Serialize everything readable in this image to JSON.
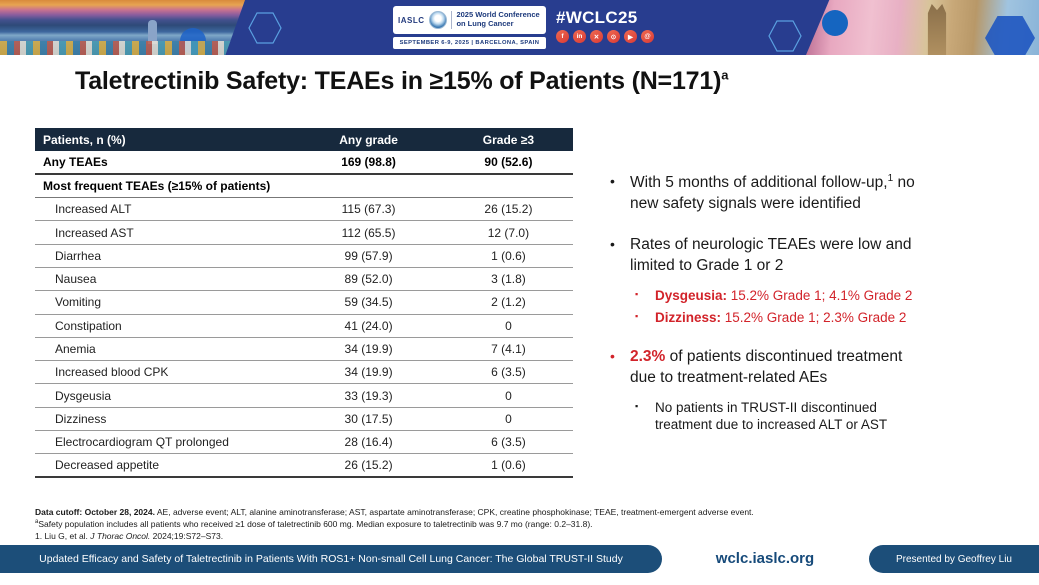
{
  "colors": {
    "accent_red": "#d2232a",
    "header_blue": "#283d8f",
    "table_header_bg": "#17293d",
    "footer_navy": "#1c4e79"
  },
  "header": {
    "iaslc_label": "IASLC",
    "conference_name": "2025 World Conference on Lung Cancer",
    "date_location": "SEPTEMBER 6-9, 2025  |  BARCELONA, SPAIN",
    "hashtag": "#WCLC25",
    "socials": [
      {
        "name": "facebook-icon",
        "glyph": "f"
      },
      {
        "name": "linkedin-icon",
        "glyph": "in"
      },
      {
        "name": "x-icon",
        "glyph": "✕"
      },
      {
        "name": "instagram-icon",
        "glyph": "⊙"
      },
      {
        "name": "youtube-icon",
        "glyph": "▶"
      },
      {
        "name": "threads-icon",
        "glyph": "@"
      }
    ]
  },
  "title": {
    "text": "Taletrectinib Safety: TEAEs in ≥15% of Patients (N=171)",
    "sup": "a"
  },
  "table": {
    "columns": [
      "Patients, n (%)",
      "Any grade",
      "Grade ≥3"
    ],
    "rows": [
      {
        "label": "Any TEAEs",
        "any_grade": "169 (98.8)",
        "grade_ge3": "90 (52.6)",
        "bold": true
      },
      {
        "label": "Most frequent TEAEs (≥15% of patients)",
        "section": true
      },
      {
        "label": "Increased ALT",
        "any_grade": "115 (67.3)",
        "grade_ge3": "26 (15.2)"
      },
      {
        "label": "Increased AST",
        "any_grade": "112 (65.5)",
        "grade_ge3": "12 (7.0)"
      },
      {
        "label": "Diarrhea",
        "any_grade": "99 (57.9)",
        "grade_ge3": "1 (0.6)"
      },
      {
        "label": "Nausea",
        "any_grade": "89 (52.0)",
        "grade_ge3": "3 (1.8)"
      },
      {
        "label": "Vomiting",
        "any_grade": "59 (34.5)",
        "grade_ge3": "2 (1.2)"
      },
      {
        "label": "Constipation",
        "any_grade": "41 (24.0)",
        "grade_ge3": "0"
      },
      {
        "label": "Anemia",
        "any_grade": "34 (19.9)",
        "grade_ge3": "7 (4.1)"
      },
      {
        "label": "Increased blood CPK",
        "any_grade": "34 (19.9)",
        "grade_ge3": "6 (3.5)"
      },
      {
        "label": "Dysgeusia",
        "any_grade": "33 (19.3)",
        "grade_ge3": "0"
      },
      {
        "label": "Dizziness",
        "any_grade": "30 (17.5)",
        "grade_ge3": "0"
      },
      {
        "label": "Electrocardiogram QT prolonged",
        "any_grade": "28 (16.4)",
        "grade_ge3": "6 (3.5)"
      },
      {
        "label": "Decreased appetite",
        "any_grade": "26 (15.2)",
        "grade_ge3": "1 (0.6)"
      }
    ]
  },
  "bullets": [
    {
      "level": 1,
      "marker": "•",
      "segments": [
        {
          "t": "With 5 months of additional follow-up,"
        },
        {
          "t": "1",
          "sup": true
        },
        {
          "t": " no new safety signals were identified"
        }
      ]
    },
    {
      "level": 1,
      "marker": "•",
      "segments": [
        {
          "t": "Rates of neurologic TEAEs were low and limited to Grade 1 or 2"
        }
      ]
    },
    {
      "level": 2,
      "marker": "▪",
      "red_line": true,
      "segments": [
        {
          "t": "Dysgeusia:",
          "b": true
        },
        {
          "t": " 15.2% Grade 1; 4.1% Grade 2"
        }
      ]
    },
    {
      "level": 2,
      "marker": "▪",
      "red_line": true,
      "segments": [
        {
          "t": "Dizziness:",
          "b": true
        },
        {
          "t": " 15.2% Grade 1; 2.3% Grade 2"
        }
      ]
    },
    {
      "level": 1,
      "marker": "•",
      "red_marker": true,
      "segments": [
        {
          "t": "2.3%",
          "b": true,
          "c": "red"
        },
        {
          "t": " of patients discontinued treatment due to treatment-related AEs"
        }
      ]
    },
    {
      "level": 2,
      "marker": "▪",
      "segments": [
        {
          "t": "No patients in TRUST-II discontinued treatment due to increased ALT or AST"
        }
      ]
    }
  ],
  "footnotes": [
    [
      {
        "t": "Data cutoff: October 28, 2024.",
        "b": true
      },
      {
        "t": " AE, adverse event; ALT, alanine aminotransferase; AST, aspartate aminotransferase; CPK, creatine phosphokinase; TEAE, treatment-emergent adverse event."
      }
    ],
    [
      {
        "t": "a",
        "sup": true
      },
      {
        "t": "Safety population includes all patients who received ≥1 dose of taletrectinib 600 mg. Median exposure to taletrectinib was 9.7 mo (range: 0.2–31.8)."
      }
    ],
    [
      {
        "t": "1. Liu G, et al. "
      },
      {
        "t": "J Thorac Oncol.",
        "i": true
      },
      {
        "t": " 2024;19:S72–S73."
      }
    ]
  ],
  "footer": {
    "left_banner": "Updated Efficacy and Safety of Taletrectinib in Patients With ROS1+ Non-small Cell Lung Cancer: The Global TRUST-II Study",
    "center_url": "wclc.iaslc.org",
    "right_banner": "Presented by Geoffrey Liu"
  }
}
